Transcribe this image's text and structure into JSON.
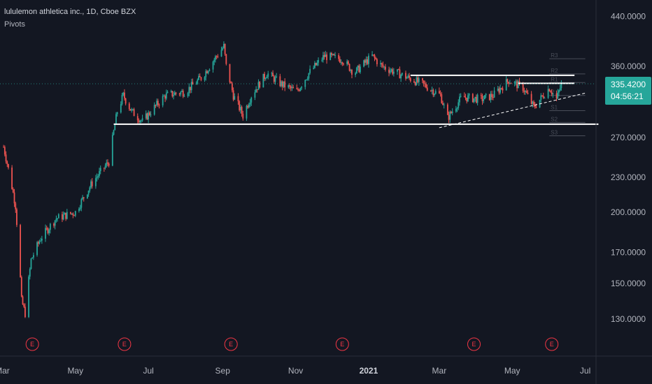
{
  "legend": {
    "symbol_line": "lululemon athletica inc., 1D, Cboe BZX",
    "indicator": "Pivots"
  },
  "colors": {
    "background": "#131722",
    "up": "#26a69a",
    "down": "#ef5350",
    "last_price_tag": "#26a69a",
    "earnings": "#f23645",
    "lines": "#ffffff"
  },
  "chart_data": {
    "type": "candlestick",
    "title": "",
    "y_scale": "log",
    "ylim": [
      112,
      470
    ],
    "y_ticks": [
      130,
      150,
      170,
      200,
      230,
      270,
      360,
      440
    ],
    "y_tick_labels": [
      "130.0000",
      "150.0000",
      "170.0000",
      "200.0000",
      "230.0000",
      "270.0000",
      "360.0000",
      "440.0000"
    ],
    "x_range": [
      "2020-02-28",
      "2021-07-10"
    ],
    "x_ticks": [
      {
        "date": "2020-03-01",
        "label": "Mar",
        "bold": false
      },
      {
        "date": "2020-05-01",
        "label": "May",
        "bold": false
      },
      {
        "date": "2020-07-01",
        "label": "Jul",
        "bold": false
      },
      {
        "date": "2020-09-01",
        "label": "Sep",
        "bold": false
      },
      {
        "date": "2020-11-01",
        "label": "Nov",
        "bold": false
      },
      {
        "date": "2021-01-01",
        "label": "2021",
        "bold": true
      },
      {
        "date": "2021-03-01",
        "label": "Mar",
        "bold": false
      },
      {
        "date": "2021-05-01",
        "label": "May",
        "bold": false
      },
      {
        "date": "2021-07-01",
        "label": "Jul",
        "bold": false
      }
    ],
    "last_price": "335.4200",
    "countdown": "04:56:21",
    "earnings_marker": "E",
    "earnings_dates": [
      "2020-03-26",
      "2020-06-11",
      "2020-09-08",
      "2020-12-10",
      "2021-03-30",
      "2021-06-03"
    ],
    "pivot_labels": [
      "R3",
      "R2",
      "R1",
      "P",
      "S1",
      "S2",
      "S3"
    ],
    "pivot_levels": [
      371,
      349,
      337,
      320,
      301,
      287,
      272
    ],
    "horizontal_lines": [
      {
        "from": "2020-06-02",
        "to": "2021-07-12",
        "y": 285
      },
      {
        "from": "2021-02-05",
        "to": "2021-06-22",
        "y": 347
      },
      {
        "from": "2021-05-06",
        "to": "2021-06-22",
        "y": 336
      }
    ],
    "trendline": {
      "from": "2021-03-01",
      "y1": 281,
      "to": "2021-07-01",
      "y2": 323
    },
    "anchors": [
      [
        "2020-03-02",
        260
      ],
      [
        "2020-03-12",
        205
      ],
      [
        "2020-03-17",
        140
      ],
      [
        "2020-03-20",
        133
      ],
      [
        "2020-03-25",
        165
      ],
      [
        "2020-04-02",
        180
      ],
      [
        "2020-04-15",
        195
      ],
      [
        "2020-05-01",
        200
      ],
      [
        "2020-05-15",
        225
      ],
      [
        "2020-05-29",
        245
      ],
      [
        "2020-06-05",
        300
      ],
      [
        "2020-06-10",
        320
      ],
      [
        "2020-06-17",
        300
      ],
      [
        "2020-06-26",
        288
      ],
      [
        "2020-07-15",
        320
      ],
      [
        "2020-08-01",
        325
      ],
      [
        "2020-08-15",
        345
      ],
      [
        "2020-09-02",
        390
      ],
      [
        "2020-09-04",
        360
      ],
      [
        "2020-09-10",
        320
      ],
      [
        "2020-09-18",
        295
      ],
      [
        "2020-09-25",
        320
      ],
      [
        "2020-10-08",
        350
      ],
      [
        "2020-10-20",
        335
      ],
      [
        "2020-11-02",
        325
      ],
      [
        "2020-11-12",
        350
      ],
      [
        "2020-11-25",
        375
      ],
      [
        "2020-12-10",
        370
      ],
      [
        "2020-12-20",
        350
      ],
      [
        "2021-01-04",
        375
      ],
      [
        "2021-01-12",
        360
      ],
      [
        "2021-02-01",
        345
      ],
      [
        "2021-02-15",
        335
      ],
      [
        "2021-03-02",
        320
      ],
      [
        "2021-03-08",
        292
      ],
      [
        "2021-03-20",
        318
      ],
      [
        "2021-04-05",
        315
      ],
      [
        "2021-04-15",
        320
      ],
      [
        "2021-04-28",
        340
      ],
      [
        "2021-05-10",
        330
      ],
      [
        "2021-05-19",
        305
      ],
      [
        "2021-06-01",
        330
      ],
      [
        "2021-06-07",
        315
      ],
      [
        "2021-06-11",
        335
      ]
    ]
  }
}
